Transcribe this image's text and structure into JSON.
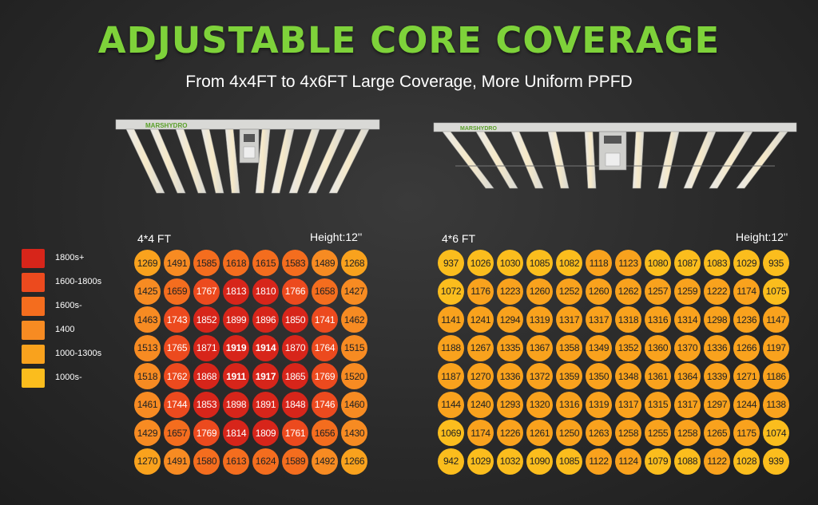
{
  "title": "ADJUSTABLE CORE COVERAGE",
  "subtitle": "From 4x4FT to 4x6FT Large Coverage, More Uniform PPFD",
  "brand": "MARSHYDRO",
  "legend": [
    {
      "label": "1800s+",
      "color": "#d7251a"
    },
    {
      "label": "1600-1800s",
      "color": "#ec4a1e"
    },
    {
      "label": "1600s-",
      "color": "#f46d1e"
    },
    {
      "label": "1400",
      "color": "#f78b22"
    },
    {
      "label": "1000-1300s",
      "color": "#f9a21d"
    },
    {
      "label": "1000s-",
      "color": "#fbbd1d"
    }
  ],
  "grid44": {
    "label": "4*4 FT",
    "height": "Height:12''",
    "bold": [
      "1919",
      "1914",
      "1911",
      "1917"
    ],
    "rows": [
      [
        "1269",
        "1491",
        "1585",
        "1618",
        "1615",
        "1583",
        "1489",
        "1268"
      ],
      [
        "1425",
        "1659",
        "1767",
        "1813",
        "1810",
        "1766",
        "1658",
        "1427"
      ],
      [
        "1463",
        "1743",
        "1852",
        "1899",
        "1896",
        "1850",
        "1741",
        "1462"
      ],
      [
        "1513",
        "1765",
        "1871",
        "1919",
        "1914",
        "1870",
        "1764",
        "1515"
      ],
      [
        "1518",
        "1762",
        "1868",
        "1911",
        "1917",
        "1865",
        "1769",
        "1520"
      ],
      [
        "1461",
        "1744",
        "1853",
        "1898",
        "1891",
        "1848",
        "1746",
        "1460"
      ],
      [
        "1429",
        "1657",
        "1769",
        "1814",
        "1809",
        "1761",
        "1656",
        "1430"
      ],
      [
        "1270",
        "1491",
        "1580",
        "1613",
        "1624",
        "1589",
        "1492",
        "1266"
      ]
    ]
  },
  "grid46": {
    "label": "4*6 FT",
    "height": "Height:12''",
    "rows": [
      [
        "937",
        "1026",
        "1030",
        "1085",
        "1082",
        "1118",
        "1123",
        "1080",
        "1087",
        "1083",
        "1029",
        "935"
      ],
      [
        "1072",
        "1176",
        "1223",
        "1260",
        "1252",
        "1260",
        "1262",
        "1257",
        "1259",
        "1222",
        "1174",
        "1075"
      ],
      [
        "1141",
        "1241",
        "1294",
        "1319",
        "1317",
        "1317",
        "1318",
        "1316",
        "1314",
        "1298",
        "1236",
        "1147"
      ],
      [
        "1188",
        "1267",
        "1335",
        "1367",
        "1358",
        "1349",
        "1352",
        "1360",
        "1370",
        "1336",
        "1266",
        "1197"
      ],
      [
        "1187",
        "1270",
        "1336",
        "1372",
        "1359",
        "1350",
        "1348",
        "1361",
        "1364",
        "1339",
        "1271",
        "1186"
      ],
      [
        "1144",
        "1240",
        "1293",
        "1320",
        "1316",
        "1319",
        "1317",
        "1315",
        "1317",
        "1297",
        "1244",
        "1138"
      ],
      [
        "1069",
        "1174",
        "1226",
        "1261",
        "1250",
        "1263",
        "1258",
        "1255",
        "1258",
        "1265",
        "1175",
        "1074"
      ],
      [
        "942",
        "1029",
        "1032",
        "1090",
        "1085",
        "1122",
        "1124",
        "1079",
        "1088",
        "1122",
        "1028",
        "939"
      ]
    ]
  }
}
